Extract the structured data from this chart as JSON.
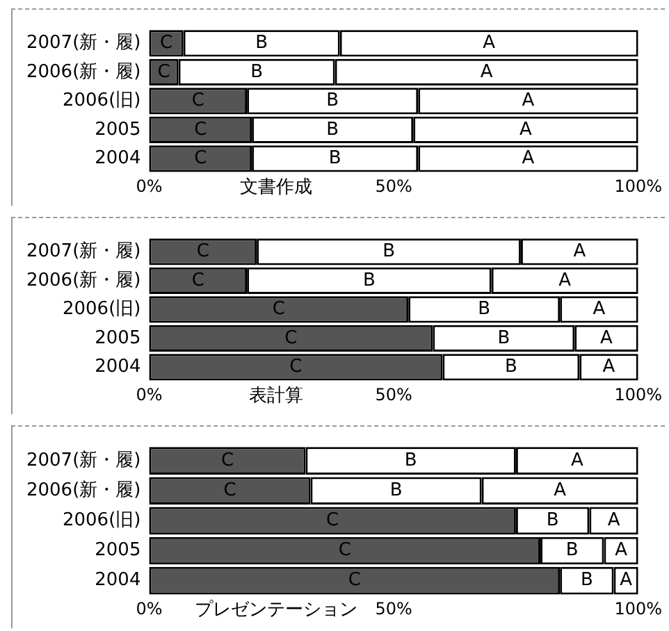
{
  "chart_data": [
    {
      "type": "bar",
      "orientation": "horizontal",
      "stacked": true,
      "xlabel": "文書作成",
      "categories": [
        "2007(新・履)",
        "2006(新・履)",
        "2006(旧)",
        "2005",
        "2004"
      ],
      "xlim": [
        0,
        100
      ],
      "xticks": [
        {
          "value": 0,
          "label": "0%"
        },
        {
          "value": 50,
          "label": "50%"
        },
        {
          "value": 100,
          "label": "100%"
        }
      ],
      "grid": false,
      "legend": false,
      "series": [
        {
          "name": "C",
          "color": "#555555",
          "values": [
            7,
            6,
            20,
            21,
            21
          ]
        },
        {
          "name": "B",
          "color": "#ffffff",
          "values": [
            32,
            32,
            35,
            33,
            34
          ]
        },
        {
          "name": "A",
          "color": "#ffffff",
          "values": [
            61,
            62,
            45,
            46,
            45
          ]
        }
      ]
    },
    {
      "type": "bar",
      "orientation": "horizontal",
      "stacked": true,
      "xlabel": "表計算",
      "categories": [
        "2007(新・履)",
        "2006(新・履)",
        "2006(旧)",
        "2005",
        "2004"
      ],
      "xlim": [
        0,
        100
      ],
      "xticks": [
        {
          "value": 0,
          "label": "0%"
        },
        {
          "value": 50,
          "label": "50%"
        },
        {
          "value": 100,
          "label": "100%"
        }
      ],
      "grid": false,
      "legend": false,
      "series": [
        {
          "name": "C",
          "color": "#555555",
          "values": [
            22,
            20,
            53,
            58,
            60
          ]
        },
        {
          "name": "B",
          "color": "#ffffff",
          "values": [
            54,
            50,
            31,
            29,
            28
          ]
        },
        {
          "name": "A",
          "color": "#ffffff",
          "values": [
            24,
            30,
            16,
            13,
            12
          ]
        }
      ]
    },
    {
      "type": "bar",
      "orientation": "horizontal",
      "stacked": true,
      "xlabel": "プレゼンテーション",
      "categories": [
        "2007(新・履)",
        "2006(新・履)",
        "2006(旧)",
        "2005",
        "2004"
      ],
      "xlim": [
        0,
        100
      ],
      "xticks": [
        {
          "value": 0,
          "label": "0%"
        },
        {
          "value": 50,
          "label": "50%"
        },
        {
          "value": 100,
          "label": "100%"
        }
      ],
      "grid": false,
      "legend": false,
      "series": [
        {
          "name": "C",
          "color": "#555555",
          "values": [
            32,
            33,
            75,
            80,
            84
          ]
        },
        {
          "name": "B",
          "color": "#ffffff",
          "values": [
            43,
            35,
            15,
            13,
            11
          ]
        },
        {
          "name": "A",
          "color": "#ffffff",
          "values": [
            25,
            32,
            10,
            7,
            5
          ]
        }
      ]
    }
  ]
}
